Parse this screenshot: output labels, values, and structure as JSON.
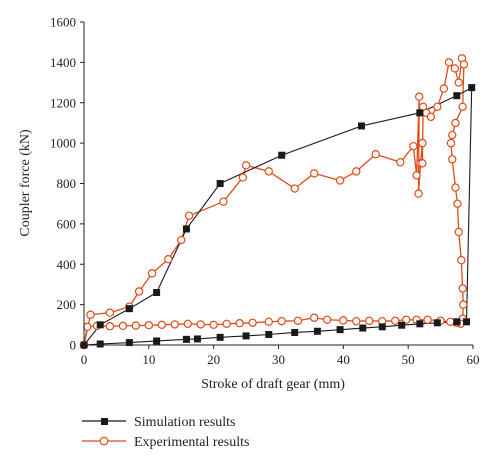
{
  "chart_data": {
    "type": "line",
    "xlabel": "Stroke of draft gear (mm)",
    "ylabel": "Coupler force (kN)",
    "xlim": [
      0,
      60
    ],
    "ylim": [
      0,
      1600
    ],
    "xticks": [
      0,
      10,
      20,
      30,
      40,
      50,
      60
    ],
    "yticks": [
      0,
      200,
      400,
      600,
      800,
      1000,
      1200,
      1400,
      1600
    ],
    "grid": false,
    "legend_position": "bottom-left",
    "series": [
      {
        "name": "Simulation results",
        "color": "#1a1a1a",
        "marker": "filled-square",
        "x": [
          0,
          2.5,
          7,
          11.2,
          15.8,
          21,
          30.5,
          42.8,
          51.8,
          57.5,
          59.8,
          59.8,
          59,
          57.5,
          54.5,
          51.8,
          49,
          46,
          43,
          39.5,
          36,
          32.5,
          28.5,
          25,
          21,
          17.5,
          15.8,
          11.2,
          7,
          2.5,
          0
        ],
        "y": [
          0,
          100,
          180,
          260,
          575,
          800,
          940,
          1085,
          1150,
          1235,
          1275,
          1275,
          115,
          115,
          110,
          105,
          98,
          90,
          84,
          76,
          68,
          62,
          52,
          45,
          38,
          30,
          28,
          20,
          12,
          5,
          0
        ]
      },
      {
        "name": "Experimental results",
        "color": "#e04b17",
        "marker": "open-circle",
        "x": [
          0,
          1,
          4,
          7,
          8.5,
          10.5,
          13,
          15,
          16.2,
          21.5,
          24.5,
          25,
          28.5,
          32.5,
          35.5,
          39.5,
          42,
          45,
          48.8,
          50.8,
          51.3,
          51.7,
          51.6,
          51.9,
          52.2,
          52.2,
          52.3,
          52.8,
          53.5,
          54.5,
          55.5,
          56.3,
          57.2,
          57.8,
          58.3,
          58.6,
          58.4,
          57.3,
          56.8,
          56.6,
          56.8,
          57.3,
          57.6,
          57.8,
          58.2,
          58.4,
          58.5,
          58.4,
          58.1,
          57.5,
          56.5,
          55,
          53,
          51.3,
          49.7,
          48,
          46,
          44,
          42,
          40,
          37.5,
          35.5,
          33,
          30.5,
          28.5,
          26,
          24,
          22,
          20,
          18,
          16,
          14,
          12,
          10,
          8,
          6,
          4,
          2,
          0.5,
          0
        ],
        "y": [
          0,
          150,
          160,
          190,
          265,
          355,
          425,
          520,
          640,
          710,
          830,
          890,
          860,
          775,
          850,
          815,
          860,
          945,
          905,
          985,
          840,
          1230,
          750,
          900,
          1000,
          900,
          1180,
          1150,
          1130,
          1180,
          1270,
          1400,
          1370,
          1300,
          1420,
          1390,
          1180,
          1100,
          1040,
          1000,
          920,
          780,
          700,
          560,
          420,
          280,
          200,
          130,
          105,
          110,
          115,
          120,
          125,
          125,
          125,
          120,
          118,
          120,
          118,
          122,
          125,
          135,
          120,
          118,
          115,
          110,
          108,
          105,
          100,
          102,
          105,
          102,
          100,
          98,
          96,
          95,
          93,
          95,
          90,
          0
        ]
      }
    ]
  }
}
